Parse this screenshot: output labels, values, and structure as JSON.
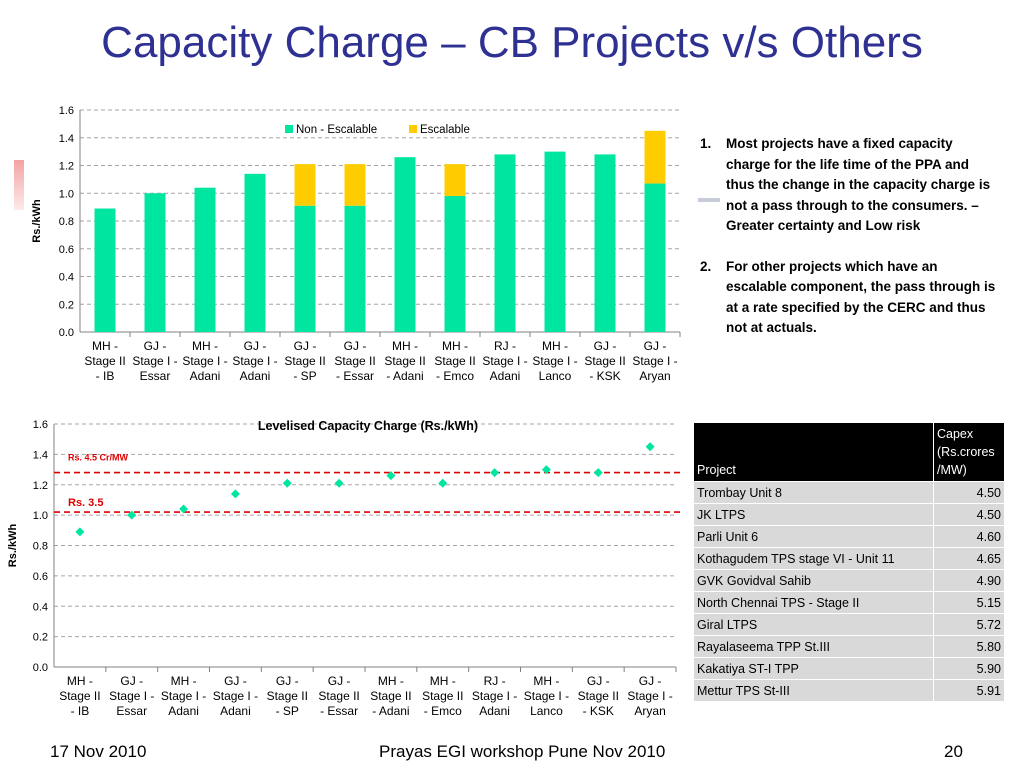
{
  "slide": {
    "title": "Capacity Charge – CB Projects v/s Others",
    "footer_left": "17 Nov 2010",
    "footer_center": "Prayas EGI workshop Pune Nov 2010",
    "footer_right": "20"
  },
  "notes": [
    {
      "num": "1.",
      "text": "Most projects have a fixed capacity charge for the life time of the PPA and thus the change in the capacity charge is not a pass through to the consumers. – Greater certainty and Low risk"
    },
    {
      "num": "2.",
      "text": "For  other projects which have an escalable component, the pass through is at a rate specified by the CERC and thus not at actuals."
    }
  ],
  "table": {
    "headers": [
      "Project",
      "Capex (Rs.crores /MW)"
    ],
    "rows": [
      [
        "Trombay Unit 8",
        "4.50"
      ],
      [
        "JK LTPS",
        "4.50"
      ],
      [
        "Parli Unit 6",
        "4.60"
      ],
      [
        "Kothagudem TPS stage VI - Unit 11",
        "4.65"
      ],
      [
        "GVK Govidval Sahib",
        "4.90"
      ],
      [
        "North Chennai TPS - Stage II",
        "5.15"
      ],
      [
        "Giral LTPS",
        "5.72"
      ],
      [
        "Rayalaseema TPP St.III",
        "5.80"
      ],
      [
        "Kakatiya ST-I TPP",
        "5.90"
      ],
      [
        "Mettur TPS St-III",
        "5.91"
      ]
    ]
  },
  "chart_data": [
    {
      "type": "bar",
      "stacked": true,
      "title": "",
      "xlabel": "",
      "ylabel": "Rs./kWh",
      "ylim": [
        0,
        1.6
      ],
      "yticks": [
        "0.0",
        "0.2",
        "0.4",
        "0.6",
        "0.8",
        "1.0",
        "1.2",
        "1.4",
        "1.6"
      ],
      "grid": true,
      "legend_position": "top",
      "categories": [
        [
          "MH -",
          "Stage II",
          "- IB"
        ],
        [
          "GJ -",
          "Stage I -",
          "Essar"
        ],
        [
          "MH -",
          "Stage I -",
          "Adani"
        ],
        [
          "GJ -",
          "Stage I -",
          "Adani"
        ],
        [
          "GJ -",
          "Stage II",
          "- SP"
        ],
        [
          "GJ -",
          "Stage II",
          "- Essar"
        ],
        [
          "MH -",
          "Stage II",
          "- Adani"
        ],
        [
          "MH -",
          "Stage II",
          "- Emco"
        ],
        [
          "RJ -",
          "Stage I -",
          "Adani"
        ],
        [
          "MH -",
          "Stage I -",
          "Lanco"
        ],
        [
          "GJ -",
          "Stage II",
          "- KSK"
        ],
        [
          "GJ -",
          "Stage I -",
          "Aryan"
        ]
      ],
      "series": [
        {
          "name": "Non - Escalable",
          "color": "#00e5a0",
          "values": [
            0.89,
            1.0,
            1.04,
            1.14,
            0.91,
            0.91,
            1.26,
            0.98,
            1.28,
            1.3,
            1.28,
            1.07
          ]
        },
        {
          "name": "Escalable",
          "color": "#ffcc00",
          "values": [
            0,
            0,
            0,
            0,
            0.3,
            0.3,
            0,
            0.23,
            0,
            0,
            0,
            0.38
          ]
        }
      ]
    },
    {
      "type": "scatter",
      "title": "Levelised Capacity Charge (Rs./kWh)",
      "xlabel": "",
      "ylabel": "Rs./kWh",
      "ylim": [
        0,
        1.6
      ],
      "yticks": [
        "0.0",
        "0.2",
        "0.4",
        "0.6",
        "0.8",
        "1.0",
        "1.2",
        "1.4",
        "1.6"
      ],
      "grid": true,
      "marker_color": "#00e5a0",
      "categories": [
        [
          "MH -",
          "Stage II",
          "- IB"
        ],
        [
          "GJ -",
          "Stage I -",
          "Essar"
        ],
        [
          "MH -",
          "Stage I -",
          "Adani"
        ],
        [
          "GJ -",
          "Stage I -",
          "Adani"
        ],
        [
          "GJ -",
          "Stage II",
          "- SP"
        ],
        [
          "GJ -",
          "Stage II",
          "- Essar"
        ],
        [
          "MH -",
          "Stage II",
          "- Adani"
        ],
        [
          "MH -",
          "Stage II",
          "- Emco"
        ],
        [
          "RJ -",
          "Stage I -",
          "Adani"
        ],
        [
          "MH -",
          "Stage I -",
          "Lanco"
        ],
        [
          "GJ -",
          "Stage II",
          "- KSK"
        ],
        [
          "GJ -",
          "Stage I -",
          "Aryan"
        ]
      ],
      "values": [
        0.89,
        1.0,
        1.04,
        1.14,
        1.21,
        1.21,
        1.26,
        1.21,
        1.28,
        1.3,
        1.28,
        1.45
      ],
      "reference_lines": [
        {
          "label": "Rs. 4.5 Cr/MW",
          "y": 1.28,
          "color": "#e00000"
        },
        {
          "label": "Rs. 3.5",
          "y": 1.02,
          "color": "#e00000"
        }
      ]
    }
  ]
}
